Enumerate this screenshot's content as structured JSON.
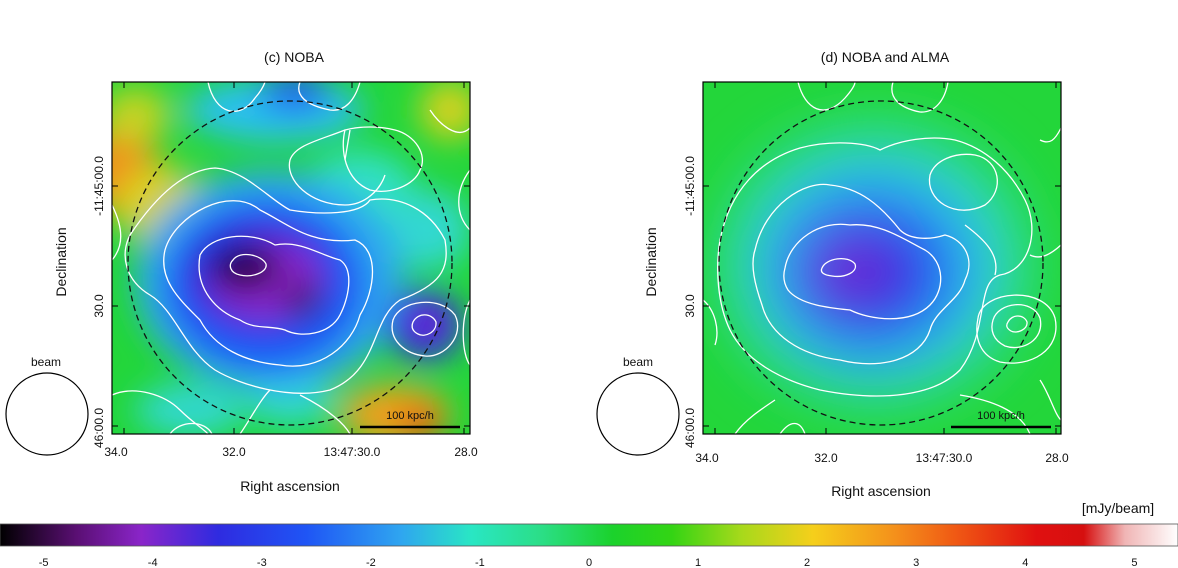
{
  "chart_data": [
    {
      "type": "heatmap",
      "title": "(c) NOBA",
      "xlabel": "Right ascension",
      "ylabel": "Declination",
      "x_ticks": [
        "34.0",
        "32.0",
        "13:47:30.0",
        "28.0"
      ],
      "y_ticks": [
        "-11:45:00.0",
        "30.0",
        "46:00.0"
      ],
      "beam_label": "beam",
      "scalebar_label": "100 kpc/h",
      "min_value_mJy": -5.0,
      "features": [
        {
          "name": "central decrement peak",
          "ra": "13:47:31.6",
          "dec": "-11:45:22",
          "value": -5.0
        },
        {
          "name": "secondary decrement",
          "ra": "13:47:30.7",
          "dec": "-11:45:30",
          "value": -4.3
        },
        {
          "name": "east-side decrement",
          "ra": "13:47:28.6",
          "dec": "-11:45:36",
          "value": -3.4
        },
        {
          "name": "north-west positive excess",
          "ra": "13:47:34.0",
          "dec": "-11:44:58",
          "value": 2.8
        },
        {
          "name": "south positive excess",
          "ra": "13:47:29.0",
          "dec": "-11:45:58",
          "value": 2.4
        }
      ]
    },
    {
      "type": "heatmap",
      "title": "(d) NOBA and ALMA",
      "xlabel": "Right ascension",
      "ylabel": "Declination",
      "x_ticks": [
        "34.0",
        "32.0",
        "13:47:30.0",
        "28.0"
      ],
      "y_ticks": [
        "-11:45:00.0",
        "30.0",
        "46:00.0"
      ],
      "beam_label": "beam",
      "scalebar_label": "100 kpc/h",
      "min_value_mJy": -4.2,
      "features": [
        {
          "name": "central decrement peak",
          "ra": "13:47:31.4",
          "dec": "-11:45:25",
          "value": -4.2
        },
        {
          "name": "background",
          "ra": "13:47:34.0",
          "dec": "-11:44:58",
          "value": 0.0
        }
      ]
    }
  ],
  "colorbar": {
    "unit_label": "[mJy/beam]",
    "min": -5.4,
    "max": 5.4,
    "ticks": [
      "-5",
      "-4",
      "-3",
      "-2",
      "-1",
      "0",
      "1",
      "2",
      "3",
      "4",
      "5"
    ],
    "colormap": "rainbow (black-purple-blue-cyan-green-yellow-orange-red-white)"
  }
}
